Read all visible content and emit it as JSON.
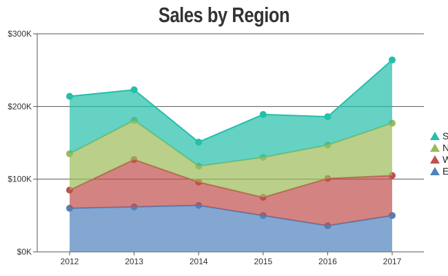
{
  "chart_data": {
    "type": "area",
    "stacked": true,
    "title": "Sales by Region",
    "categories": [
      "2012",
      "2013",
      "2014",
      "2015",
      "2016",
      "2017"
    ],
    "ylim": [
      0,
      300
    ],
    "yticks": [
      0,
      100,
      200,
      300
    ],
    "ytick_labels": [
      "$0K",
      "$100K",
      "$200K",
      "$300K"
    ],
    "grid": true,
    "legend_position": "right",
    "series": [
      {
        "name": "E",
        "color": "#4f81bd",
        "values": [
          60,
          62,
          64,
          50,
          36,
          50
        ]
      },
      {
        "name": "W",
        "color": "#c0504d",
        "values": [
          25,
          65,
          32,
          25,
          65,
          55
        ]
      },
      {
        "name": "N",
        "color": "#9bbb59",
        "values": [
          50,
          54,
          22,
          55,
          46,
          72
        ]
      },
      {
        "name": "S",
        "color": "#23bfaa",
        "values": [
          79,
          42,
          33,
          59,
          39,
          87
        ]
      }
    ]
  }
}
